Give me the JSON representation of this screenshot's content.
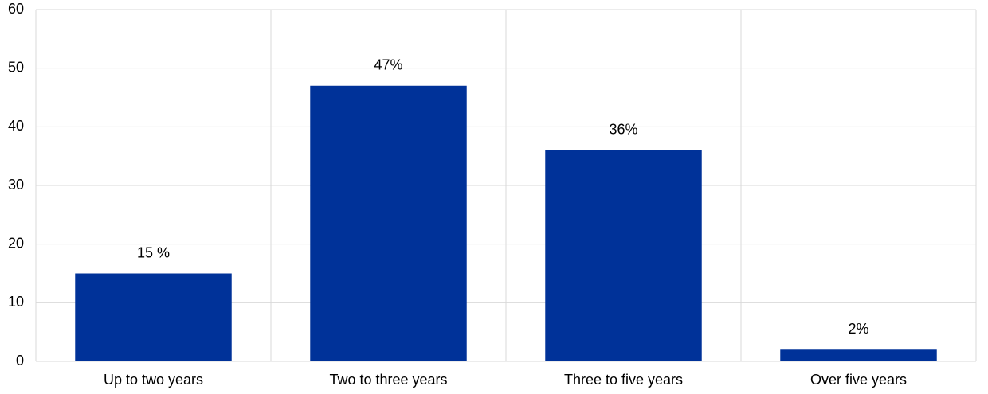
{
  "chart_data": {
    "type": "bar",
    "categories": [
      "Up to two years",
      "Two to three years",
      "Three to five years",
      "Over five years"
    ],
    "values": [
      15,
      47,
      36,
      2
    ],
    "value_labels": [
      "15 %",
      "47%",
      "36%",
      "2%"
    ],
    "color": "#003299",
    "ylim": [
      0,
      60
    ],
    "yticks": [
      0,
      10,
      20,
      30,
      40,
      50,
      60
    ],
    "grid": true
  }
}
